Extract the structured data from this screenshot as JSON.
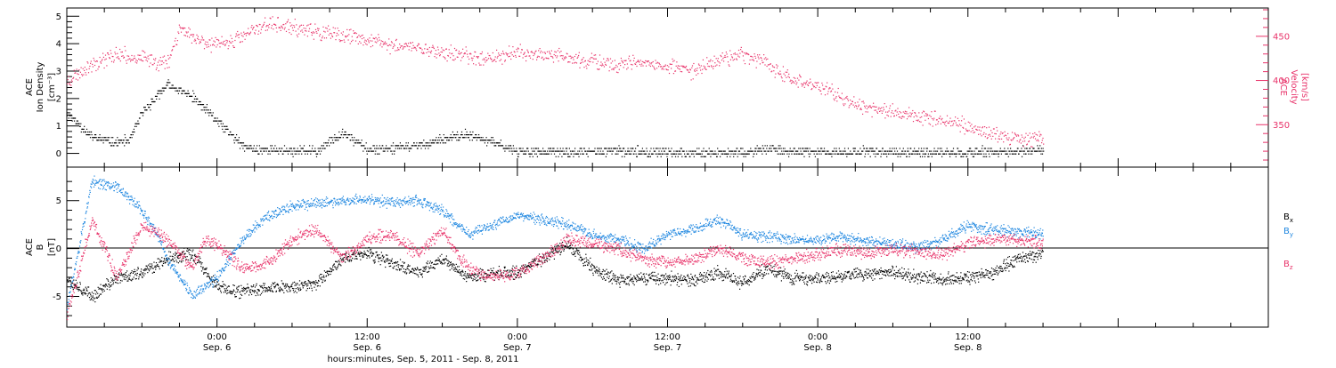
{
  "colors": {
    "black": "#000000",
    "pink": "#e8336a",
    "blue": "#1f87e0"
  },
  "chart_data": [
    {
      "type": "scatter",
      "panel": "top",
      "left_axis": {
        "label": [
          "ACE",
          "Ion Density",
          "[cm⁻³]"
        ],
        "ylim": [
          -0.5,
          5.3
        ],
        "ticks": [
          "0",
          "1",
          "2",
          "3",
          "4",
          "5"
        ]
      },
      "right_axis": {
        "label": [
          "ACE",
          "Velocity",
          "[km/s]"
        ],
        "ylim": [
          302,
          482
        ],
        "ticks": [
          "350",
          "400",
          "450"
        ],
        "color": "#e8336a"
      },
      "series": [
        {
          "color": "#000000",
          "axis": "left",
          "x": [
            -12,
            -10,
            -8,
            -7,
            -6,
            -4,
            -2,
            0,
            2,
            3,
            4,
            6,
            8,
            10,
            12,
            16,
            20,
            24,
            28,
            32,
            34,
            36,
            38,
            40,
            42,
            44,
            46,
            48,
            50,
            56,
            60,
            64,
            66
          ],
          "y": [
            1.5,
            0.6,
            0.4,
            0.5,
            1.5,
            2.5,
            2.1,
            1.2,
            0.3,
            0.15,
            0.15,
            0.1,
            0.1,
            0.8,
            0.15,
            0.3,
            0.7,
            0.1,
            0.05,
            0.1,
            0.08,
            0.05,
            0.03,
            0.05,
            0.04,
            0.2,
            0.06,
            0.05,
            0.1,
            0.05,
            0.05,
            0.08,
            0.1
          ]
        },
        {
          "color": "#e8336a",
          "axis": "right",
          "x": [
            -12,
            -10,
            -8,
            -6,
            -4,
            -3,
            -2,
            0,
            2,
            4,
            6,
            8,
            10,
            12,
            14,
            16,
            18,
            20,
            22,
            24,
            26,
            28,
            30,
            32,
            34,
            36,
            38,
            40,
            42,
            44,
            46,
            48,
            50,
            52,
            54,
            56,
            58,
            60,
            62,
            64,
            66
          ],
          "y": [
            400,
            420,
            430,
            425,
            420,
            460,
            450,
            440,
            450,
            465,
            460,
            455,
            450,
            447,
            440,
            438,
            432,
            428,
            426,
            432,
            430,
            425,
            422,
            418,
            420,
            415,
            412,
            425,
            430,
            420,
            400,
            395,
            380,
            370,
            365,
            360,
            356,
            348,
            340,
            335,
            336
          ]
        }
      ]
    },
    {
      "type": "scatter",
      "panel": "bottom",
      "axis": {
        "label": [
          "ACE",
          "B",
          "[nT]"
        ],
        "ylim": [
          -8.2,
          8.5
        ],
        "ticks": [
          "-5",
          "0",
          "5"
        ]
      },
      "zero_line": true,
      "series": [
        {
          "name": "Bx",
          "name_base": "B",
          "name_sub": "x",
          "color": "#000000",
          "x": [
            -12,
            -10,
            -8,
            -6,
            -4,
            -2,
            0,
            2,
            4,
            6,
            8,
            10,
            12,
            14,
            16,
            18,
            20,
            22,
            24,
            26,
            28,
            30,
            32,
            34,
            36,
            38,
            40,
            42,
            44,
            46,
            48,
            50,
            52,
            54,
            56,
            58,
            60,
            62,
            64,
            66
          ],
          "y": [
            -3,
            -5,
            -3,
            -2.5,
            -1,
            -0.5,
            -4,
            -4.5,
            -4,
            -4,
            -3.5,
            -1,
            -0.5,
            -1.5,
            -2.5,
            -1,
            -3,
            -2.5,
            -2.5,
            -1,
            0.5,
            -2,
            -3.2,
            -3.1,
            -3,
            -3.3,
            -2.5,
            -3.5,
            -2,
            -3,
            -3.1,
            -2.8,
            -2.6,
            -2.5,
            -2.9,
            -3.2,
            -3,
            -2.5,
            -1,
            -0.5
          ]
        },
        {
          "name": "By",
          "name_base": "B",
          "name_sub": "y",
          "color": "#1f87e0",
          "x": [
            -12,
            -10,
            -9,
            -8,
            -6,
            -5,
            -4,
            -3,
            -2,
            0,
            2,
            4,
            6,
            8,
            10,
            12,
            14,
            16,
            18,
            20,
            22,
            24,
            26,
            28,
            30,
            32,
            34,
            36,
            38,
            40,
            42,
            44,
            46,
            48,
            50,
            52,
            54,
            56,
            58,
            60,
            62,
            64,
            66
          ],
          "y": [
            -6,
            7,
            6.8,
            6.5,
            4,
            2,
            -1,
            -3,
            -5,
            -3,
            1,
            3.5,
            4.5,
            4.8,
            5,
            5.2,
            4.8,
            5,
            4,
            1.5,
            2.5,
            3.5,
            3,
            2.5,
            1.5,
            1,
            0,
            1.5,
            2,
            3,
            1.5,
            1.3,
            1,
            1,
            1.2,
            0.8,
            0.5,
            0.2,
            1,
            2.5,
            2,
            1.8,
            1.5
          ]
        },
        {
          "name": "Bz",
          "name_base": "B",
          "name_sub": "z",
          "color": "#e8336a",
          "x": [
            -12,
            -10,
            -9,
            -8,
            -6,
            -4,
            -2,
            -1,
            0,
            2,
            4,
            6,
            8,
            10,
            12,
            14,
            16,
            18,
            20,
            22,
            24,
            26,
            28,
            30,
            32,
            34,
            36,
            38,
            40,
            42,
            44,
            46,
            48,
            50,
            52,
            54,
            56,
            58,
            60,
            62,
            64,
            66
          ],
          "y": [
            -7,
            3,
            0,
            -3,
            2.5,
            1,
            -2,
            1,
            0.5,
            -2,
            -1.5,
            1,
            2,
            -1,
            1,
            1.5,
            -0.5,
            2,
            -2,
            -3,
            -2.5,
            -1,
            1,
            0.5,
            0,
            -1,
            -1.5,
            -1,
            0,
            -1,
            -1.5,
            -1,
            -0.5,
            0,
            -0.5,
            0,
            -0.3,
            -0.5,
            0.5,
            1,
            1,
            0.5
          ]
        }
      ]
    }
  ],
  "x_axis": {
    "xlim": [
      -12,
      84
    ],
    "ticks": [
      {
        "x": 0,
        "time": "0:00",
        "date": "Sep. 6"
      },
      {
        "x": 12,
        "time": "12:00",
        "date": "Sep. 6"
      },
      {
        "x": 24,
        "time": "0:00",
        "date": "Sep. 7"
      },
      {
        "x": 36,
        "time": "12:00",
        "date": "Sep. 7"
      },
      {
        "x": 48,
        "time": "0:00",
        "date": "Sep. 8"
      },
      {
        "x": 60,
        "time": "12:00",
        "date": "Sep. 8"
      }
    ],
    "label": "hours:minutes, Sep.  5, 2011 - Sep.  8, 2011"
  }
}
